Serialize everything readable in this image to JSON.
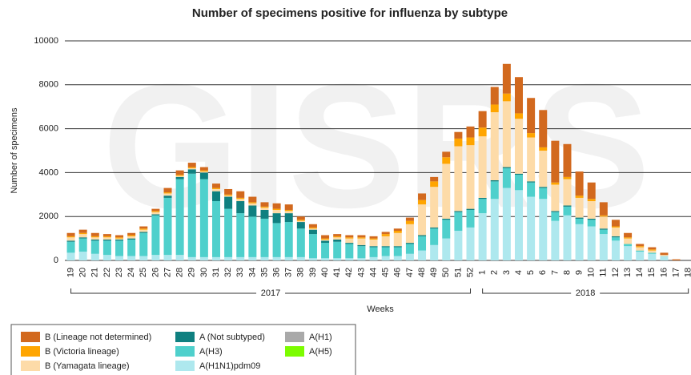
{
  "chart_data": {
    "type": "stacked_bar",
    "title": "Number of specimens positive for influenza by subtype",
    "watermark": "GISRS",
    "y_label": "Number of specimens",
    "x_label": "Weeks",
    "years": [
      "2017",
      "2018"
    ],
    "categories": [
      "19",
      "20",
      "21",
      "22",
      "23",
      "24",
      "25",
      "26",
      "27",
      "28",
      "29",
      "30",
      "31",
      "32",
      "33",
      "34",
      "35",
      "36",
      "37",
      "38",
      "39",
      "40",
      "41",
      "42",
      "43",
      "44",
      "45",
      "46",
      "47",
      "48",
      "49",
      "50",
      "51",
      "52",
      "1",
      "2",
      "3",
      "4",
      "5",
      "6",
      "7",
      "8",
      "9",
      "10",
      "11",
      "12",
      "13",
      "14",
      "15",
      "16",
      "17",
      "18"
    ],
    "ylim": [
      0,
      10000
    ],
    "yticks": [
      0,
      2000,
      4000,
      6000,
      8000,
      10000
    ],
    "grid": true,
    "series": [
      {
        "name": "B (Lineage not determined)",
        "color": "#d2691e",
        "values": [
          150,
          150,
          150,
          100,
          100,
          100,
          100,
          100,
          200,
          200,
          200,
          150,
          200,
          250,
          300,
          250,
          200,
          250,
          250,
          150,
          150,
          150,
          100,
          100,
          100,
          100,
          100,
          100,
          150,
          300,
          200,
          250,
          300,
          500,
          750,
          800,
          1350,
          1650,
          1600,
          1700,
          1900,
          1500,
          1100,
          750,
          600,
          300,
          200,
          100,
          100,
          100,
          50,
          0
        ]
      },
      {
        "name": "B (Victoria lineage)",
        "color": "#ffa500",
        "values": [
          50,
          50,
          50,
          50,
          50,
          50,
          50,
          50,
          50,
          50,
          50,
          50,
          50,
          50,
          50,
          50,
          50,
          50,
          50,
          50,
          50,
          50,
          50,
          50,
          50,
          50,
          100,
          100,
          150,
          200,
          250,
          300,
          350,
          350,
          400,
          350,
          350,
          250,
          200,
          150,
          100,
          100,
          100,
          100,
          50,
          50,
          50,
          50,
          50,
          0,
          0,
          0
        ]
      },
      {
        "name": "B (Yamagata lineage)",
        "color": "#fddba8",
        "values": [
          150,
          150,
          100,
          100,
          50,
          100,
          100,
          100,
          100,
          50,
          50,
          50,
          100,
          50,
          100,
          100,
          100,
          150,
          100,
          50,
          50,
          50,
          100,
          200,
          300,
          300,
          450,
          600,
          850,
          1400,
          1850,
          2500,
          2950,
          2900,
          2800,
          3100,
          3000,
          2500,
          2000,
          1650,
          1200,
          1200,
          900,
          800,
          550,
          400,
          250,
          150,
          100,
          50,
          0,
          0
        ]
      },
      {
        "name": "A (Not subtyped)",
        "color": "#0f8080",
        "values": [
          50,
          50,
          50,
          50,
          50,
          50,
          50,
          50,
          100,
          100,
          200,
          300,
          450,
          550,
          550,
          500,
          400,
          450,
          400,
          300,
          200,
          100,
          100,
          50,
          50,
          50,
          50,
          50,
          50,
          50,
          50,
          50,
          50,
          50,
          50,
          50,
          50,
          50,
          50,
          50,
          50,
          50,
          50,
          50,
          50,
          50,
          0,
          0,
          0,
          0,
          0,
          0
        ]
      },
      {
        "name": "A(H3)",
        "color": "#4fd0cc",
        "values": [
          500,
          600,
          600,
          650,
          700,
          750,
          1050,
          1800,
          2600,
          3450,
          3800,
          3550,
          2550,
          2200,
          2000,
          1850,
          1750,
          1550,
          1600,
          1300,
          1100,
          700,
          750,
          650,
          550,
          450,
          400,
          400,
          450,
          650,
          750,
          850,
          850,
          800,
          650,
          800,
          900,
          700,
          650,
          500,
          400,
          400,
          250,
          300,
          200,
          150,
          100,
          50,
          50,
          0,
          0,
          0
        ]
      },
      {
        "name": "A(H1N1)pdm09",
        "color": "#aee8ee",
        "values": [
          350,
          400,
          300,
          250,
          200,
          200,
          200,
          250,
          250,
          250,
          150,
          150,
          150,
          150,
          150,
          150,
          150,
          150,
          150,
          150,
          100,
          100,
          100,
          100,
          100,
          150,
          200,
          200,
          300,
          450,
          700,
          1000,
          1350,
          1500,
          2150,
          2800,
          3300,
          3200,
          2900,
          2800,
          1800,
          2050,
          1650,
          1550,
          1200,
          900,
          650,
          400,
          300,
          200,
          0,
          0
        ]
      },
      {
        "name": "A(H1)",
        "color": "#a9a9a9",
        "values": [
          0,
          0,
          0,
          0,
          0,
          0,
          0,
          0,
          0,
          0,
          0,
          0,
          0,
          0,
          0,
          0,
          0,
          0,
          0,
          0,
          0,
          0,
          0,
          0,
          0,
          0,
          0,
          0,
          0,
          0,
          0,
          0,
          0,
          0,
          0,
          0,
          0,
          0,
          0,
          0,
          0,
          0,
          0,
          0,
          0,
          0,
          0,
          0,
          0,
          0,
          0,
          0
        ]
      },
      {
        "name": "A(H5)",
        "color": "#7cfc00",
        "values": [
          0,
          0,
          0,
          0,
          0,
          0,
          0,
          0,
          0,
          0,
          0,
          0,
          0,
          0,
          0,
          0,
          0,
          0,
          0,
          0,
          0,
          0,
          0,
          0,
          0,
          0,
          0,
          0,
          0,
          0,
          0,
          0,
          0,
          0,
          0,
          0,
          0,
          0,
          0,
          0,
          0,
          0,
          0,
          0,
          0,
          0,
          0,
          0,
          0,
          0,
          0,
          0
        ]
      }
    ]
  }
}
